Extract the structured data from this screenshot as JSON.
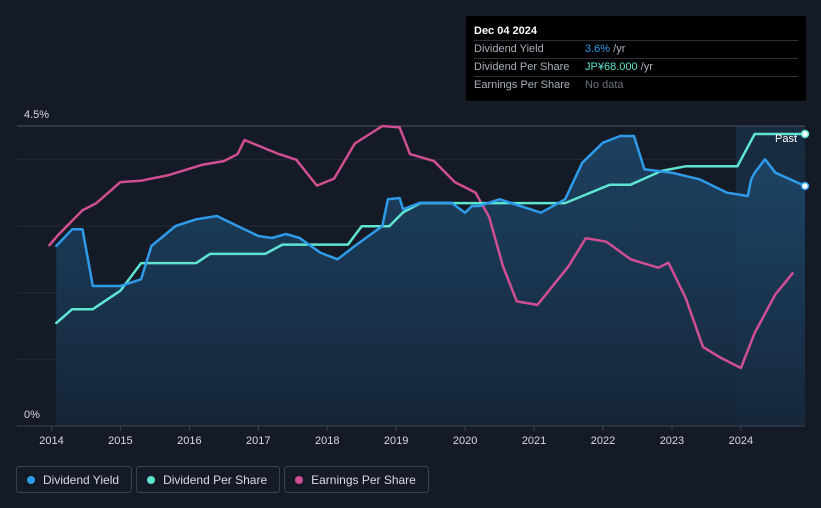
{
  "tooltip": {
    "date": "Dec 04 2024",
    "rows": [
      {
        "label": "Dividend Yield",
        "value": "3.6%",
        "unit": " /yr"
      },
      {
        "label": "Dividend Per Share",
        "value": "JP¥68.000",
        "unit": " /yr"
      },
      {
        "label": "Earnings Per Share",
        "value": "No data",
        "unit": ""
      }
    ]
  },
  "legend": [
    {
      "label": "Dividend Yield",
      "color": "#2f9be8"
    },
    {
      "label": "Dividend Per Share",
      "color": "#5ee4d0"
    },
    {
      "label": "Earnings Per Share",
      "color": "#d04f92"
    }
  ],
  "chart_data": {
    "type": "line",
    "title": "",
    "xlabel": "",
    "ylabel": "",
    "x_ticks": [
      "2014",
      "2015",
      "2016",
      "2017",
      "2018",
      "2019",
      "2020",
      "2021",
      "2022",
      "2023",
      "2024"
    ],
    "y_ticks": [
      "4.5%",
      "0%"
    ],
    "xlim": [
      2013.5,
      2024.93
    ],
    "ylim": [
      0,
      4.5
    ],
    "past_label": "Past",
    "past_start": 2023.93,
    "series": [
      {
        "name": "Dividend Yield",
        "color": "#2f9be8",
        "unit": "%",
        "points": [
          [
            2014.07,
            2.7
          ],
          [
            2014.3,
            2.95
          ],
          [
            2014.45,
            2.95
          ],
          [
            2014.6,
            2.1
          ],
          [
            2015.0,
            2.1
          ],
          [
            2015.3,
            2.2
          ],
          [
            2015.45,
            2.7
          ],
          [
            2015.8,
            3.0
          ],
          [
            2016.1,
            3.1
          ],
          [
            2016.4,
            3.15
          ],
          [
            2016.6,
            3.05
          ],
          [
            2017.0,
            2.85
          ],
          [
            2017.2,
            2.82
          ],
          [
            2017.4,
            2.88
          ],
          [
            2017.6,
            2.82
          ],
          [
            2017.9,
            2.6
          ],
          [
            2018.15,
            2.5
          ],
          [
            2018.4,
            2.7
          ],
          [
            2018.8,
            3.0
          ],
          [
            2018.88,
            3.4
          ],
          [
            2019.05,
            3.42
          ],
          [
            2019.1,
            3.25
          ],
          [
            2019.35,
            3.35
          ],
          [
            2019.8,
            3.35
          ],
          [
            2020.0,
            3.2
          ],
          [
            2020.1,
            3.3
          ],
          [
            2020.2,
            3.3
          ],
          [
            2020.5,
            3.4
          ],
          [
            2020.8,
            3.3
          ],
          [
            2021.1,
            3.2
          ],
          [
            2021.45,
            3.4
          ],
          [
            2021.7,
            3.95
          ],
          [
            2022.0,
            4.25
          ],
          [
            2022.25,
            4.35
          ],
          [
            2022.45,
            4.35
          ],
          [
            2022.6,
            3.85
          ],
          [
            2023.0,
            3.8
          ],
          [
            2023.4,
            3.7
          ],
          [
            2023.8,
            3.5
          ],
          [
            2024.1,
            3.45
          ],
          [
            2024.15,
            3.7
          ],
          [
            2024.2,
            3.8
          ],
          [
            2024.35,
            4.0
          ],
          [
            2024.5,
            3.8
          ],
          [
            2024.93,
            3.6
          ]
        ]
      },
      {
        "name": "Dividend Per Share",
        "color": "#5ee4d0",
        "unit": "JP¥",
        "points": [
          [
            2014.07,
            27
          ],
          [
            2014.3,
            30
          ],
          [
            2014.6,
            30
          ],
          [
            2015.0,
            34
          ],
          [
            2015.3,
            40
          ],
          [
            2016.1,
            40
          ],
          [
            2016.3,
            42
          ],
          [
            2017.1,
            42
          ],
          [
            2017.35,
            44
          ],
          [
            2018.3,
            44
          ],
          [
            2018.5,
            48
          ],
          [
            2018.9,
            48
          ],
          [
            2019.1,
            51
          ],
          [
            2019.35,
            53
          ],
          [
            2021.45,
            53
          ],
          [
            2022.1,
            57
          ],
          [
            2022.4,
            57
          ],
          [
            2022.85,
            60
          ],
          [
            2023.2,
            61
          ],
          [
            2023.8,
            61
          ],
          [
            2023.95,
            61
          ],
          [
            2024.2,
            68
          ],
          [
            2024.93,
            68
          ]
        ]
      },
      {
        "name": "Earnings Per Share",
        "color": "#d04f92",
        "unit": "JP¥",
        "points": [
          [
            2013.97,
            250
          ],
          [
            2014.1,
            265
          ],
          [
            2014.45,
            300
          ],
          [
            2014.65,
            310
          ],
          [
            2015.0,
            340
          ],
          [
            2015.3,
            342
          ],
          [
            2015.7,
            350
          ],
          [
            2016.2,
            365
          ],
          [
            2016.5,
            370
          ],
          [
            2016.7,
            380
          ],
          [
            2016.8,
            400
          ],
          [
            2017.3,
            380
          ],
          [
            2017.55,
            372
          ],
          [
            2017.85,
            335
          ],
          [
            2018.1,
            345
          ],
          [
            2018.4,
            395
          ],
          [
            2018.8,
            420
          ],
          [
            2019.05,
            418
          ],
          [
            2019.2,
            380
          ],
          [
            2019.55,
            370
          ],
          [
            2019.85,
            340
          ],
          [
            2020.15,
            325
          ],
          [
            2020.35,
            290
          ],
          [
            2020.55,
            220
          ],
          [
            2020.75,
            170
          ],
          [
            2021.05,
            165
          ],
          [
            2021.5,
            220
          ],
          [
            2021.75,
            260
          ],
          [
            2022.05,
            255
          ],
          [
            2022.4,
            230
          ],
          [
            2022.8,
            218
          ],
          [
            2022.95,
            225
          ],
          [
            2023.2,
            175
          ],
          [
            2023.45,
            105
          ],
          [
            2023.7,
            90
          ],
          [
            2024.0,
            75
          ],
          [
            2024.2,
            125
          ],
          [
            2024.5,
            180
          ],
          [
            2024.75,
            210
          ]
        ]
      }
    ]
  }
}
